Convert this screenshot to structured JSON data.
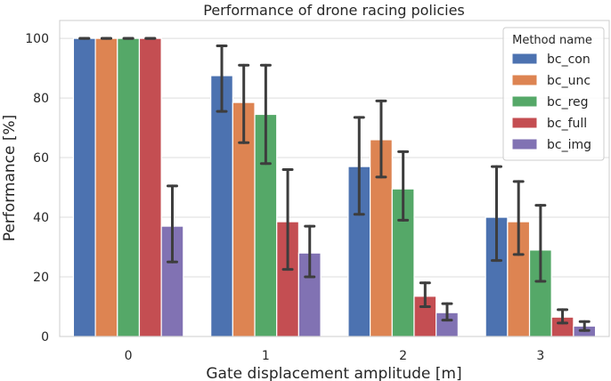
{
  "chart_data": {
    "type": "bar",
    "title": "Performance of drone racing policies",
    "xlabel": "Gate displacement amplitude [m]",
    "ylabel": "Performance [%]",
    "categories": [
      "0",
      "1",
      "2",
      "3"
    ],
    "ylim": [
      0,
      106
    ],
    "yticks": [
      0,
      20,
      40,
      60,
      80,
      100
    ],
    "grid": true,
    "legend": {
      "title": "Method name",
      "position": "top-right"
    },
    "series": [
      {
        "name": "bc_con",
        "color": "#4c72b0",
        "values": [
          100,
          87.5,
          57,
          40
        ],
        "err_low": [
          100,
          75.5,
          41,
          25.5
        ],
        "err_high": [
          100,
          97.5,
          73.5,
          57
        ]
      },
      {
        "name": "bc_unc",
        "color": "#dd8452",
        "values": [
          100,
          78.5,
          66,
          38.5
        ],
        "err_low": [
          100,
          65,
          53.5,
          27.5
        ],
        "err_high": [
          100,
          91,
          79,
          52
        ]
      },
      {
        "name": "bc_reg",
        "color": "#55a868",
        "values": [
          100,
          74.5,
          49.5,
          29
        ],
        "err_low": [
          100,
          58,
          39,
          18.5
        ],
        "err_high": [
          100,
          91,
          62,
          44
        ]
      },
      {
        "name": "bc_full",
        "color": "#c44e52",
        "values": [
          100,
          38.5,
          13.5,
          6.5
        ],
        "err_low": [
          100,
          22.5,
          10,
          4.5
        ],
        "err_high": [
          100,
          56,
          18,
          9
        ]
      },
      {
        "name": "bc_img",
        "color": "#8172b3",
        "values": [
          37,
          28,
          8,
          3.5
        ],
        "err_low": [
          25,
          20,
          5.5,
          2
        ],
        "err_high": [
          50.5,
          37,
          11,
          5
        ]
      }
    ]
  }
}
